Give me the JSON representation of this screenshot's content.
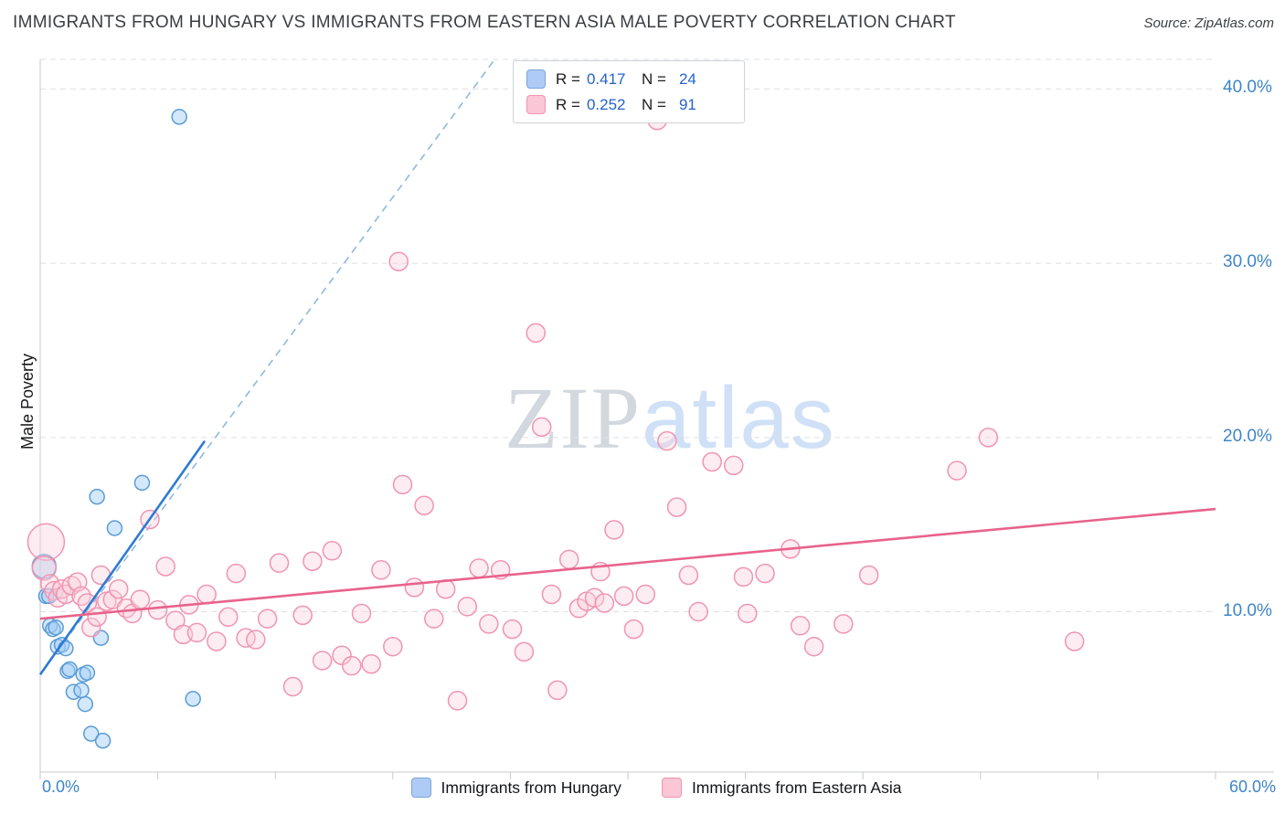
{
  "header": {
    "title": "IMMIGRANTS FROM HUNGARY VS IMMIGRANTS FROM EASTERN ASIA MALE POVERTY CORRELATION CHART",
    "source": "Source: ZipAtlas.com"
  },
  "watermark": {
    "zip": "ZIP",
    "atlas": "atlas"
  },
  "legend_box": {
    "rows": [
      {
        "series": "hungary",
        "r_label": "R =",
        "r_value": "0.417",
        "n_label": "N =",
        "n_value": "24"
      },
      {
        "series": "eastern_asia",
        "r_label": "R =",
        "r_value": "0.252",
        "n_label": "N =",
        "n_value": "91"
      }
    ]
  },
  "axes": {
    "y_label": "Male Poverty",
    "x_min_label": "0.0%",
    "x_max_label": "60.0%",
    "y_tick_labels": [
      "10.0%",
      "20.0%",
      "30.0%",
      "40.0%"
    ]
  },
  "bottom_legend": {
    "items": [
      {
        "label": "Immigrants from Hungary",
        "color": "#aecbf7"
      },
      {
        "label": "Immigrants from Eastern Asia",
        "color": "#fbc6d6"
      }
    ]
  },
  "colors": {
    "axis_label_blue": "#3d85c8",
    "grid": "#dcdfe3",
    "hungary_trend": "#2e7bd2",
    "eastern_trend": "#e8638c",
    "value_blue": "#2563c9"
  },
  "chart_data": {
    "type": "scatter",
    "title": "IMMIGRANTS FROM HUNGARY VS IMMIGRANTS FROM EASTERN ASIA MALE POVERTY CORRELATION CHART",
    "xlabel": "",
    "ylabel": "Male Poverty",
    "xlim": [
      0,
      60
    ],
    "ylim": [
      0.8,
      41.7
    ],
    "grid_y": [
      10,
      20,
      30,
      40
    ],
    "y_tick_labels": [
      "10.0%",
      "20.0%",
      "30.0%",
      "40.0%"
    ],
    "x_tick_values": [
      0,
      6,
      12,
      18,
      24,
      30,
      36,
      42,
      48,
      54,
      60
    ],
    "legend_position": "bottom",
    "series": [
      {
        "id": "hungary",
        "name": "Immigrants from Hungary",
        "R": 0.417,
        "N": 24,
        "stroke": "#5b9bd5",
        "fill": "rgba(158,203,247,0.45)",
        "point_radius": 8,
        "points": [
          [
            0.2,
            12.6,
            13
          ],
          [
            0.3,
            10.9
          ],
          [
            0.45,
            10.9
          ],
          [
            0.5,
            9.2
          ],
          [
            0.65,
            9.0
          ],
          [
            0.8,
            9.1
          ],
          [
            0.9,
            8.0
          ],
          [
            1.1,
            8.1
          ],
          [
            1.3,
            7.9
          ],
          [
            1.4,
            6.6
          ],
          [
            1.5,
            6.7
          ],
          [
            1.7,
            5.4
          ],
          [
            2.1,
            5.5
          ],
          [
            2.2,
            6.4
          ],
          [
            2.4,
            6.5
          ],
          [
            2.3,
            4.7
          ],
          [
            2.6,
            3.0
          ],
          [
            3.2,
            2.6
          ],
          [
            2.9,
            16.6
          ],
          [
            3.1,
            8.5
          ],
          [
            3.8,
            14.8
          ],
          [
            5.2,
            17.4
          ],
          [
            7.1,
            38.4
          ],
          [
            7.8,
            5.0
          ]
        ]
      },
      {
        "id": "eastern-asia",
        "name": "Immigrants from Eastern Asia",
        "R": 0.252,
        "N": 91,
        "stroke": "#f094b2",
        "fill": "rgba(251,208,221,0.4)",
        "point_radius": 10,
        "points": [
          [
            0.3,
            14.0,
            20
          ],
          [
            0.2,
            12.5,
            13
          ],
          [
            0.5,
            11.6
          ],
          [
            0.7,
            11.2
          ],
          [
            0.9,
            10.8
          ],
          [
            1.1,
            11.3
          ],
          [
            1.3,
            11.0
          ],
          [
            1.6,
            11.5
          ],
          [
            1.9,
            11.7
          ],
          [
            2.1,
            10.9
          ],
          [
            2.4,
            10.5
          ],
          [
            2.6,
            9.1
          ],
          [
            2.9,
            9.7
          ],
          [
            3.1,
            12.1
          ],
          [
            3.4,
            10.6
          ],
          [
            3.7,
            10.7
          ],
          [
            4.0,
            11.3
          ],
          [
            4.4,
            10.2
          ],
          [
            4.7,
            9.9
          ],
          [
            5.1,
            10.7
          ],
          [
            5.6,
            15.3
          ],
          [
            6.0,
            10.1
          ],
          [
            6.4,
            12.6
          ],
          [
            6.9,
            9.5
          ],
          [
            7.3,
            8.7
          ],
          [
            7.6,
            10.4
          ],
          [
            8.0,
            8.8
          ],
          [
            8.5,
            11.0
          ],
          [
            9.0,
            8.3
          ],
          [
            9.6,
            9.7
          ],
          [
            10.0,
            12.2
          ],
          [
            10.5,
            8.5
          ],
          [
            11.0,
            8.4
          ],
          [
            11.6,
            9.6
          ],
          [
            12.2,
            12.8
          ],
          [
            12.9,
            5.7
          ],
          [
            13.4,
            9.8
          ],
          [
            13.9,
            12.9
          ],
          [
            14.4,
            7.2
          ],
          [
            14.9,
            13.5
          ],
          [
            15.4,
            7.5
          ],
          [
            15.9,
            6.9
          ],
          [
            16.4,
            9.9
          ],
          [
            16.9,
            7.0
          ],
          [
            17.4,
            12.4
          ],
          [
            18.0,
            8.0
          ],
          [
            18.3,
            30.1
          ],
          [
            18.5,
            17.3
          ],
          [
            19.1,
            11.4
          ],
          [
            19.6,
            16.1
          ],
          [
            20.1,
            9.6
          ],
          [
            20.7,
            11.3
          ],
          [
            21.3,
            4.9
          ],
          [
            21.8,
            10.3
          ],
          [
            22.4,
            12.5
          ],
          [
            22.9,
            9.3
          ],
          [
            23.5,
            12.4
          ],
          [
            24.1,
            9.0
          ],
          [
            24.7,
            7.7
          ],
          [
            25.3,
            26.0
          ],
          [
            25.6,
            20.6
          ],
          [
            26.1,
            11.0
          ],
          [
            26.4,
            5.5
          ],
          [
            27.0,
            13.0
          ],
          [
            27.5,
            10.2
          ],
          [
            27.9,
            10.6
          ],
          [
            28.3,
            10.8
          ],
          [
            28.6,
            12.3
          ],
          [
            28.8,
            10.5
          ],
          [
            29.3,
            14.7
          ],
          [
            29.8,
            10.9
          ],
          [
            30.3,
            9.0
          ],
          [
            30.9,
            11.0
          ],
          [
            31.5,
            38.2
          ],
          [
            32.0,
            19.8
          ],
          [
            32.5,
            16.0
          ],
          [
            33.1,
            12.1
          ],
          [
            33.6,
            10.0
          ],
          [
            34.3,
            18.6
          ],
          [
            35.4,
            18.4
          ],
          [
            35.9,
            12.0
          ],
          [
            36.1,
            9.9
          ],
          [
            37.0,
            12.2
          ],
          [
            38.3,
            13.6
          ],
          [
            38.8,
            9.2
          ],
          [
            39.5,
            8.0
          ],
          [
            41.0,
            9.3
          ],
          [
            42.3,
            12.1
          ],
          [
            46.8,
            18.1
          ],
          [
            48.4,
            20.0
          ],
          [
            52.8,
            8.3
          ]
        ]
      }
    ],
    "trends": [
      {
        "name": "Immigrants from Hungary",
        "color": "#2e7bd2",
        "points": [
          [
            0,
            6.4
          ],
          [
            8.4,
            19.8
          ]
        ],
        "extension": [
          [
            0,
            6.4
          ],
          [
            23.2,
            41.7
          ]
        ],
        "extension_color": "#8fb8e0"
      },
      {
        "name": "Immigrants from Eastern Asia",
        "color": "#e8638c",
        "points": [
          [
            0,
            9.6
          ],
          [
            60,
            15.9
          ]
        ]
      }
    ]
  }
}
